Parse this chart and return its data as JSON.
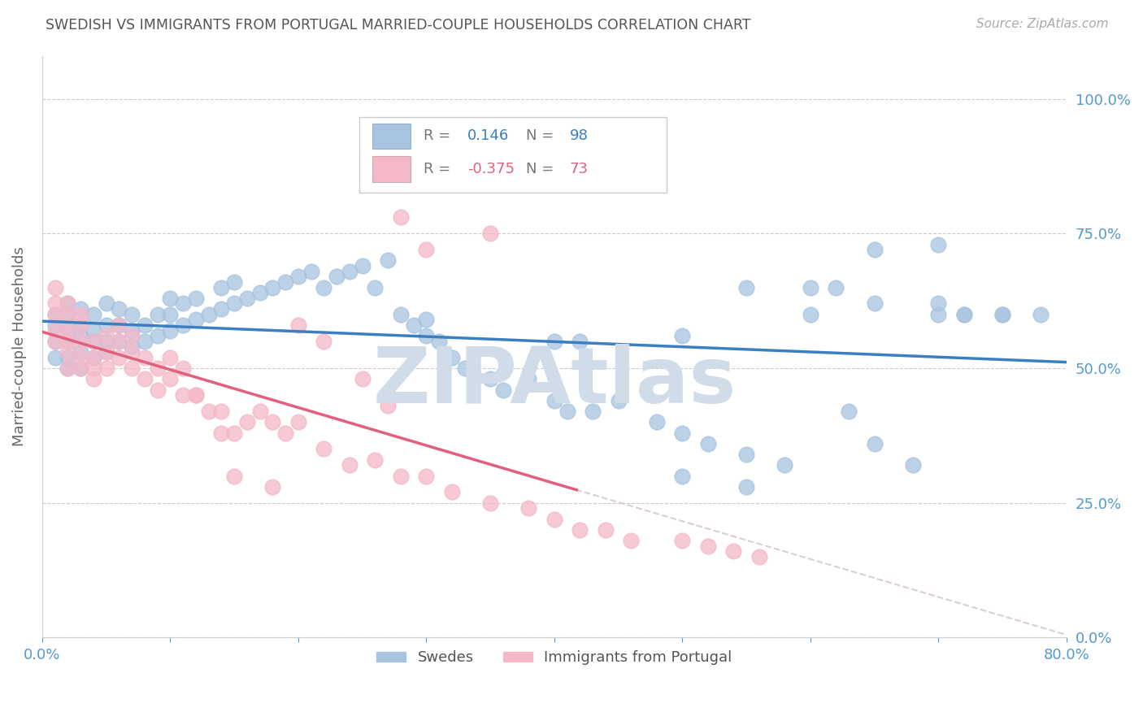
{
  "title": "SWEDISH VS IMMIGRANTS FROM PORTUGAL MARRIED-COUPLE HOUSEHOLDS CORRELATION CHART",
  "source": "Source: ZipAtlas.com",
  "ylabel": "Married-couple Households",
  "ytick_labels": [
    "0.0%",
    "25.0%",
    "50.0%",
    "75.0%",
    "100.0%"
  ],
  "ytick_values": [
    0.0,
    0.25,
    0.5,
    0.75,
    1.0
  ],
  "xlim": [
    0.0,
    0.8
  ],
  "ylim": [
    0.0,
    1.08
  ],
  "blue_R": 0.146,
  "blue_N": 98,
  "pink_R": -0.375,
  "pink_N": 73,
  "legend_label_blue": "Swedes",
  "legend_label_pink": "Immigrants from Portugal",
  "blue_color": "#a8c4e0",
  "blue_line_color": "#3a7fc1",
  "pink_color": "#f4b8c8",
  "pink_line_color": "#e0607e",
  "dashed_line_color": "#d4c0cc",
  "grid_color": "#cccccc",
  "title_color": "#555555",
  "axis_color": "#5599cc",
  "watermark_color": "#d0dde8",
  "blue_x": [
    0.01,
    0.01,
    0.01,
    0.01,
    0.02,
    0.02,
    0.02,
    0.02,
    0.02,
    0.02,
    0.03,
    0.03,
    0.03,
    0.03,
    0.03,
    0.04,
    0.04,
    0.04,
    0.04,
    0.05,
    0.05,
    0.05,
    0.05,
    0.06,
    0.06,
    0.06,
    0.07,
    0.07,
    0.07,
    0.08,
    0.08,
    0.09,
    0.09,
    0.1,
    0.1,
    0.1,
    0.11,
    0.11,
    0.12,
    0.12,
    0.13,
    0.14,
    0.14,
    0.15,
    0.15,
    0.16,
    0.17,
    0.18,
    0.19,
    0.2,
    0.21,
    0.22,
    0.23,
    0.24,
    0.25,
    0.26,
    0.27,
    0.28,
    0.29,
    0.3,
    0.3,
    0.31,
    0.32,
    0.33,
    0.35,
    0.36,
    0.38,
    0.4,
    0.41,
    0.43,
    0.45,
    0.48,
    0.5,
    0.52,
    0.55,
    0.58,
    0.6,
    0.63,
    0.65,
    0.68,
    0.7,
    0.72,
    0.75,
    0.78,
    0.4,
    0.42,
    0.5,
    0.55,
    0.62,
    0.65,
    0.7,
    0.72,
    0.75,
    0.5,
    0.55,
    0.6,
    0.65,
    0.7
  ],
  "blue_y": [
    0.52,
    0.55,
    0.58,
    0.6,
    0.5,
    0.52,
    0.55,
    0.57,
    0.6,
    0.62,
    0.5,
    0.53,
    0.56,
    0.58,
    0.61,
    0.52,
    0.55,
    0.57,
    0.6,
    0.53,
    0.55,
    0.58,
    0.62,
    0.55,
    0.58,
    0.61,
    0.54,
    0.57,
    0.6,
    0.55,
    0.58,
    0.56,
    0.6,
    0.57,
    0.6,
    0.63,
    0.58,
    0.62,
    0.59,
    0.63,
    0.6,
    0.61,
    0.65,
    0.62,
    0.66,
    0.63,
    0.64,
    0.65,
    0.66,
    0.67,
    0.68,
    0.65,
    0.67,
    0.68,
    0.69,
    0.65,
    0.7,
    0.6,
    0.58,
    0.56,
    0.59,
    0.55,
    0.52,
    0.5,
    0.48,
    0.46,
    0.48,
    0.44,
    0.42,
    0.42,
    0.44,
    0.4,
    0.38,
    0.36,
    0.34,
    0.32,
    0.6,
    0.42,
    0.36,
    0.32,
    0.6,
    0.6,
    0.6,
    0.6,
    0.55,
    0.55,
    0.56,
    0.65,
    0.65,
    0.62,
    0.62,
    0.6,
    0.6,
    0.3,
    0.28,
    0.65,
    0.72,
    0.73
  ],
  "pink_x": [
    0.01,
    0.01,
    0.01,
    0.01,
    0.01,
    0.02,
    0.02,
    0.02,
    0.02,
    0.02,
    0.02,
    0.03,
    0.03,
    0.03,
    0.03,
    0.03,
    0.04,
    0.04,
    0.04,
    0.04,
    0.05,
    0.05,
    0.05,
    0.06,
    0.06,
    0.06,
    0.07,
    0.07,
    0.07,
    0.08,
    0.08,
    0.09,
    0.09,
    0.1,
    0.1,
    0.11,
    0.11,
    0.12,
    0.13,
    0.14,
    0.15,
    0.16,
    0.17,
    0.18,
    0.19,
    0.2,
    0.22,
    0.24,
    0.26,
    0.28,
    0.3,
    0.32,
    0.35,
    0.38,
    0.4,
    0.42,
    0.44,
    0.46,
    0.5,
    0.52,
    0.54,
    0.56,
    0.35,
    0.28,
    0.3,
    0.12,
    0.14,
    0.15,
    0.18,
    0.2,
    0.22,
    0.25,
    0.27
  ],
  "pink_y": [
    0.55,
    0.57,
    0.6,
    0.62,
    0.65,
    0.5,
    0.53,
    0.55,
    0.57,
    0.6,
    0.62,
    0.5,
    0.52,
    0.55,
    0.58,
    0.6,
    0.48,
    0.5,
    0.52,
    0.55,
    0.5,
    0.53,
    0.56,
    0.52,
    0.55,
    0.58,
    0.5,
    0.53,
    0.56,
    0.48,
    0.52,
    0.46,
    0.5,
    0.48,
    0.52,
    0.45,
    0.5,
    0.45,
    0.42,
    0.42,
    0.38,
    0.4,
    0.42,
    0.4,
    0.38,
    0.4,
    0.35,
    0.32,
    0.33,
    0.3,
    0.3,
    0.27,
    0.25,
    0.24,
    0.22,
    0.2,
    0.2,
    0.18,
    0.18,
    0.17,
    0.16,
    0.15,
    0.75,
    0.78,
    0.72,
    0.45,
    0.38,
    0.3,
    0.28,
    0.58,
    0.55,
    0.48,
    0.43
  ]
}
